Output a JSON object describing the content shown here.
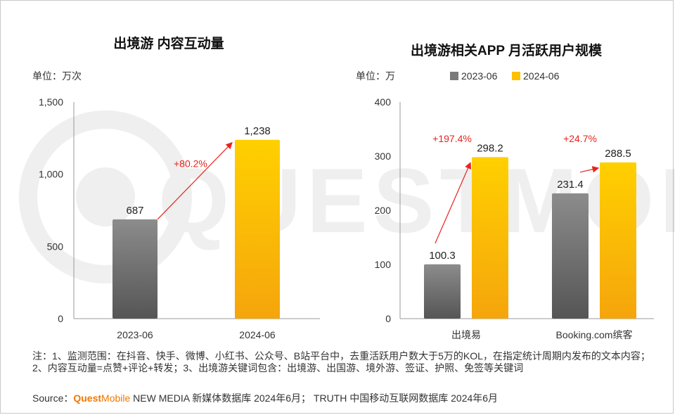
{
  "chart_data": [
    {
      "type": "bar",
      "title": "出境游 内容互动量",
      "unit_label": "单位：万次",
      "categories": [
        "2023-06",
        "2024-06"
      ],
      "values": [
        687,
        1238
      ],
      "value_labels": [
        "687",
        "1,238"
      ],
      "ylim": [
        0,
        1500
      ],
      "yticks": [
        0,
        500,
        1000,
        1500
      ],
      "ytick_labels": [
        "0",
        "500",
        "1,000",
        "1,500"
      ],
      "annotations": [
        {
          "text": "+80.2%",
          "from": 0,
          "to": 1
        }
      ],
      "bar_colors": [
        "#7a7a7a",
        "#ffc000"
      ],
      "accent": "#e8231b"
    },
    {
      "type": "bar",
      "title": "出境游相关APP 月活跃用户规模",
      "unit_label": "单位：万",
      "categories": [
        "出境易",
        "Booking.com缤客"
      ],
      "series": [
        {
          "name": "2023-06",
          "values": [
            100.3,
            231.4
          ],
          "color": "#7a7a7a"
        },
        {
          "name": "2024-06",
          "values": [
            298.2,
            288.5
          ],
          "color": "#ffc000"
        }
      ],
      "value_labels": [
        [
          "100.3",
          "231.4"
        ],
        [
          "298.2",
          "288.5"
        ]
      ],
      "ylim": [
        0,
        400
      ],
      "yticks": [
        0,
        100,
        200,
        300,
        400
      ],
      "ytick_labels": [
        "0",
        "100",
        "200",
        "300",
        "400"
      ],
      "legend": "top",
      "annotations": [
        {
          "text": "+197.4%",
          "category": 0
        },
        {
          "text": "+24.7%",
          "category": 1
        }
      ],
      "accent": "#e8231b"
    }
  ],
  "watermark": "QUESTMOBILE",
  "notes": "注：1、监测范围：在抖音、快手、微博、小红书、公众号、B站平台中，去重活跃用户数大于5万的KOL，在指定统计周期内发布的文本内容；2、内容互动量=点赞+评论+转发；3、出境游关键词包含：出境游、出国游、境外游、签证、护照、免签等关键词",
  "source": {
    "prefix": "Source：",
    "brand_quest": "Quest",
    "brand_mobile": "Mobile",
    "rest": " NEW MEDIA 新媒体数据库 2024年6月； TRUTH 中国移动互联网数据库 2024年6月"
  }
}
